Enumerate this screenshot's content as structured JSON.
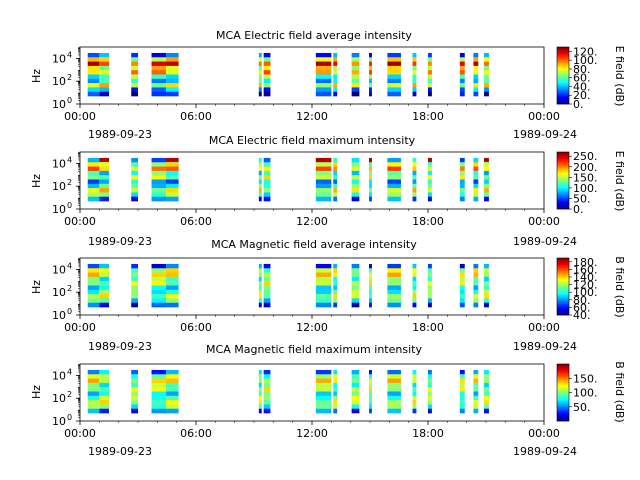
{
  "chart_data": [
    {
      "type": "heatmap",
      "title": "MCA  Electric field average intensity",
      "ylabel": "Hz",
      "yscale": "log",
      "ylim": [
        1,
        100000
      ],
      "yticks": [
        {
          "exp": "0",
          "value": 1
        },
        {
          "exp": "2",
          "value": 100
        },
        {
          "exp": "4",
          "value": 10000
        }
      ],
      "xlim": [
        "1989-09-23 00:00",
        "1989-09-24 00:00"
      ],
      "xticks": [
        "00:00",
        "06:00",
        "12:00",
        "18:00",
        "00:00"
      ],
      "date_labels": [
        "1989-09-23",
        "1989-09-24"
      ],
      "colorbar": {
        "label": "E field (dB)",
        "min": 0,
        "max": 130,
        "ticks": [
          {
            "v": 0,
            "t": "0."
          },
          {
            "v": 20,
            "t": "20."
          },
          {
            "v": 40,
            "t": "40."
          },
          {
            "v": 60,
            "t": "60."
          },
          {
            "v": 80,
            "t": "80."
          },
          {
            "v": 100,
            "t": "100."
          },
          {
            "v": 120,
            "t": "120."
          }
        ]
      },
      "segments": [
        [
          0.4,
          1.0
        ],
        [
          1.0,
          1.5
        ],
        [
          2.65,
          3.0
        ],
        [
          3.7,
          4.45
        ],
        [
          4.45,
          5.1
        ],
        [
          9.25,
          9.4
        ],
        [
          9.5,
          9.85
        ],
        [
          12.2,
          13.0
        ],
        [
          13.1,
          13.3
        ],
        [
          14.05,
          14.45
        ],
        [
          14.95,
          15.1
        ],
        [
          15.9,
          16.6
        ],
        [
          17.2,
          17.4
        ],
        [
          18.0,
          18.2
        ],
        [
          19.65,
          19.9
        ],
        [
          20.35,
          20.6
        ],
        [
          20.9,
          21.15
        ]
      ],
      "profile": [
        20,
        60,
        85,
        60,
        70,
        45,
        35,
        60,
        25,
        10
      ],
      "topband": 0
    },
    {
      "type": "heatmap",
      "title": "MCA  Electric field maximum intensity",
      "ylabel": "Hz",
      "yscale": "log",
      "ylim": [
        1,
        100000
      ],
      "yticks": [
        {
          "exp": "0",
          "value": 1
        },
        {
          "exp": "2",
          "value": 100
        },
        {
          "exp": "4",
          "value": 10000
        }
      ],
      "xlim": [
        "1989-09-23 00:00",
        "1989-09-24 00:00"
      ],
      "xticks": [
        "00:00",
        "06:00",
        "12:00",
        "18:00",
        "00:00"
      ],
      "date_labels": [
        "1989-09-23",
        "1989-09-24"
      ],
      "colorbar": {
        "label": "E field (dB)",
        "min": 0,
        "max": 270,
        "ticks": [
          {
            "v": 0,
            "t": "0."
          },
          {
            "v": 50,
            "t": "50."
          },
          {
            "v": 100,
            "t": "100."
          },
          {
            "v": 150,
            "t": "150."
          },
          {
            "v": 200,
            "t": "200."
          },
          {
            "v": 250,
            "t": "250."
          }
        ]
      },
      "segments": [
        [
          0.4,
          1.0
        ],
        [
          1.0,
          1.5
        ],
        [
          2.65,
          3.0
        ],
        [
          3.7,
          4.45
        ],
        [
          4.45,
          5.1
        ],
        [
          9.25,
          9.4
        ],
        [
          9.5,
          9.85
        ],
        [
          12.2,
          13.0
        ],
        [
          13.1,
          13.3
        ],
        [
          14.05,
          14.45
        ],
        [
          14.95,
          15.1
        ],
        [
          15.9,
          16.6
        ],
        [
          17.2,
          17.4
        ],
        [
          18.0,
          18.2
        ],
        [
          19.65,
          19.9
        ],
        [
          20.35,
          20.6
        ],
        [
          20.9,
          21.15
        ]
      ],
      "profile": [
        30,
        55,
        70,
        40,
        55,
        30,
        40,
        60,
        45,
        20
      ],
      "topband": 1
    },
    {
      "type": "heatmap",
      "title": "MCA  Magnetic field average intensity",
      "ylabel": "Hz",
      "yscale": "log",
      "ylim": [
        1,
        100000
      ],
      "yticks": [
        {
          "exp": "0",
          "value": 1
        },
        {
          "exp": "2",
          "value": 100
        },
        {
          "exp": "4",
          "value": 10000
        }
      ],
      "xlim": [
        "1989-09-23 00:00",
        "1989-09-24 00:00"
      ],
      "xticks": [
        "00:00",
        "06:00",
        "12:00",
        "18:00",
        "00:00"
      ],
      "date_labels": [
        "1989-09-23",
        "1989-09-24"
      ],
      "colorbar": {
        "label": "B field (dB)",
        "min": 40,
        "max": 190,
        "ticks": [
          {
            "v": 40,
            "t": "40."
          },
          {
            "v": 60,
            "t": "60."
          },
          {
            "v": 80,
            "t": "80."
          },
          {
            "v": 100,
            "t": "100."
          },
          {
            "v": 120,
            "t": "120."
          },
          {
            "v": 140,
            "t": "140."
          },
          {
            "v": 160,
            "t": "160."
          },
          {
            "v": 180,
            "t": "180."
          }
        ]
      },
      "segments": [
        [
          0.4,
          1.0
        ],
        [
          1.0,
          1.5
        ],
        [
          2.65,
          3.0
        ],
        [
          3.7,
          4.45
        ],
        [
          4.45,
          5.1
        ],
        [
          9.25,
          9.4
        ],
        [
          9.5,
          9.85
        ],
        [
          12.2,
          13.0
        ],
        [
          13.1,
          13.3
        ],
        [
          14.05,
          14.45
        ],
        [
          14.95,
          15.1
        ],
        [
          15.9,
          16.6
        ],
        [
          17.2,
          17.4
        ],
        [
          18.0,
          18.2
        ],
        [
          19.65,
          19.9
        ],
        [
          20.35,
          20.6
        ],
        [
          20.9,
          21.15
        ]
      ],
      "profile": [
        20,
        55,
        60,
        45,
        55,
        40,
        45,
        55,
        40,
        15
      ],
      "topband": 0
    },
    {
      "type": "heatmap",
      "title": "MCA  Magnetic field maximum intensity",
      "ylabel": "Hz",
      "yscale": "log",
      "ylim": [
        1,
        100000
      ],
      "yticks": [
        {
          "exp": "0",
          "value": 1
        },
        {
          "exp": "2",
          "value": 100
        },
        {
          "exp": "4",
          "value": 10000
        }
      ],
      "xlim": [
        "1989-09-23 00:00",
        "1989-09-24 00:00"
      ],
      "xticks": [
        "00:00",
        "06:00",
        "12:00",
        "18:00",
        "00:00"
      ],
      "date_labels": [
        "1989-09-23",
        "1989-09-24"
      ],
      "colorbar": {
        "label": "B field (dB)",
        "min": 0,
        "max": 200,
        "ticks": [
          {
            "v": 50,
            "t": "50."
          },
          {
            "v": 100,
            "t": "100."
          },
          {
            "v": 150,
            "t": "150."
          }
        ]
      },
      "segments": [
        [
          0.4,
          1.0
        ],
        [
          1.0,
          1.5
        ],
        [
          2.65,
          3.0
        ],
        [
          3.7,
          4.45
        ],
        [
          4.45,
          5.1
        ],
        [
          9.25,
          9.4
        ],
        [
          9.5,
          9.85
        ],
        [
          12.2,
          13.0
        ],
        [
          13.1,
          13.3
        ],
        [
          14.05,
          14.45
        ],
        [
          14.95,
          15.1
        ],
        [
          15.9,
          16.6
        ],
        [
          17.2,
          17.4
        ],
        [
          18.0,
          18.2
        ],
        [
          19.65,
          19.9
        ],
        [
          20.35,
          20.6
        ],
        [
          20.9,
          21.15
        ]
      ],
      "profile": [
        25,
        50,
        60,
        45,
        55,
        40,
        50,
        55,
        45,
        20
      ],
      "topband": 0
    }
  ]
}
